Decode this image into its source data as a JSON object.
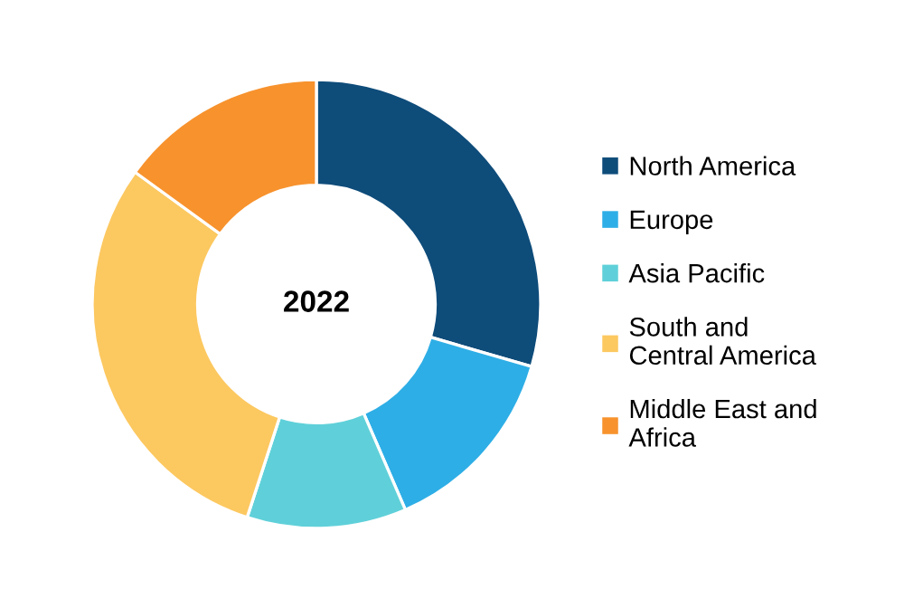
{
  "chart_data": {
    "type": "donut",
    "categories": [
      "North America",
      "Europe",
      "Asia Pacific",
      "South and\nCentral America",
      "Middle East and\nAfrica"
    ],
    "values": [
      29.5,
      14,
      11.5,
      30,
      15
    ],
    "colors": [
      "#0e4c7a",
      "#2eaee6",
      "#5fd0d9",
      "#fcc860",
      "#f7922d"
    ],
    "annotations": [
      "2022"
    ],
    "legend": "right"
  }
}
